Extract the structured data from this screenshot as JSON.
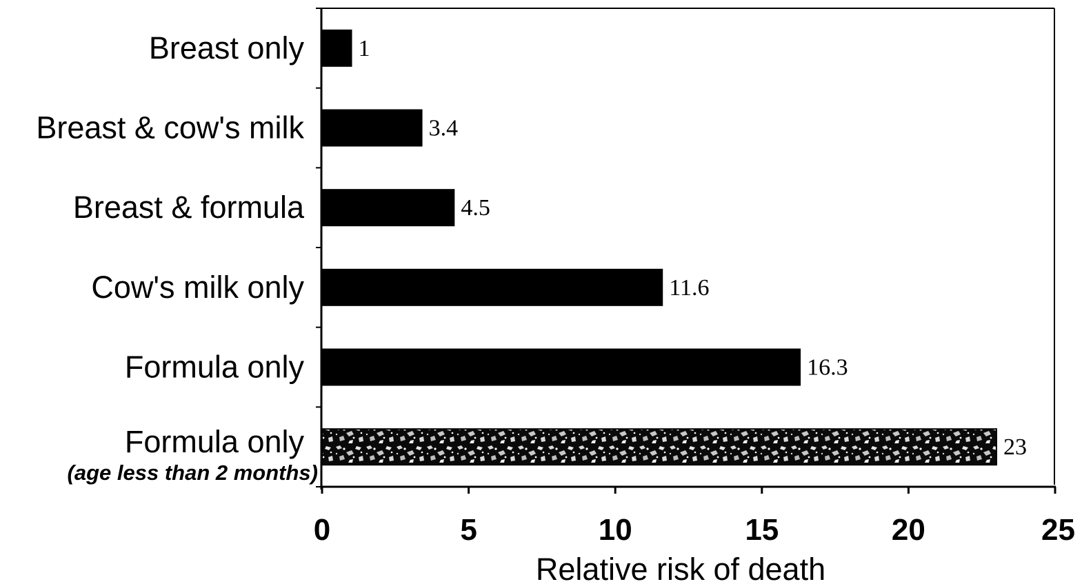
{
  "chart_data": {
    "type": "bar",
    "orientation": "horizontal",
    "categories": [
      "Breast only",
      "Breast & cow's milk",
      "Breast & formula",
      "Cow's milk only",
      "Formula only",
      "Formula only"
    ],
    "category_sublabels": [
      "",
      "",
      "",
      "",
      "",
      "(age less than 2 months)"
    ],
    "values": [
      1,
      3.4,
      4.5,
      11.6,
      16.3,
      23
    ],
    "data_labels": [
      "1",
      "3.4",
      "4.5",
      "11.6",
      "16.3",
      "23"
    ],
    "bar_styles": [
      "solid",
      "solid",
      "solid",
      "solid",
      "solid",
      "textured"
    ],
    "xlabel": "Relative risk of death",
    "ylabel": "",
    "xlim": [
      0,
      25
    ],
    "xticks": [
      0,
      5,
      10,
      15,
      20,
      25
    ],
    "xtick_labels": [
      "0",
      "5",
      "10",
      "15",
      "20",
      "25"
    ],
    "grid": false,
    "legend": "none",
    "colors": {
      "bar": "#000000",
      "texture_dark": "#0a0a0a",
      "texture_light": "#d9d9d9",
      "axis": "#000000",
      "background": "#ffffff"
    }
  }
}
